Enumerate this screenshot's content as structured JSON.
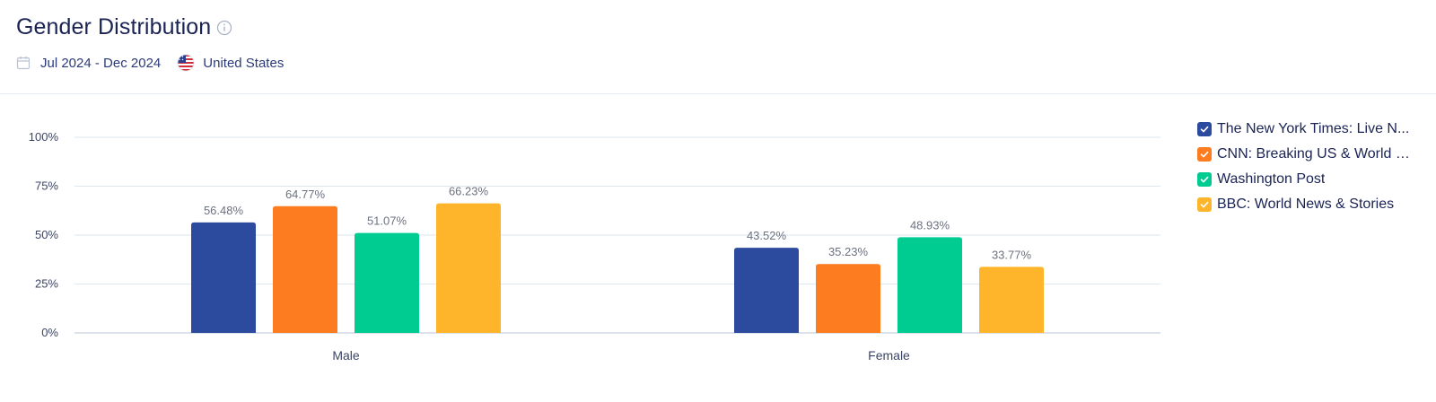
{
  "header": {
    "title": "Gender Distribution",
    "date_range": "Jul 2024 - Dec 2024",
    "country": "United States"
  },
  "colors": {
    "nyt": "#2d4b9e",
    "cnn": "#fd7c1f",
    "wapo": "#00cc92",
    "bbc": "#ffb52b",
    "grid": "#dbe6ef",
    "axis_text": "#3b4566",
    "value_text": "#6b7280"
  },
  "chart_data": {
    "type": "bar",
    "title": "",
    "xlabel": "",
    "ylabel": "",
    "ylim": [
      0,
      100
    ],
    "yticks": [
      "0%",
      "25%",
      "50%",
      "75%",
      "100%"
    ],
    "categories": [
      "Male",
      "Female"
    ],
    "legend_position": "right",
    "grid": true,
    "series": [
      {
        "name": "The New York Times: Live N...",
        "values": [
          56.48,
          43.52
        ],
        "labels": [
          "56.48%",
          "43.52%"
        ],
        "color": "#2d4b9e"
      },
      {
        "name": "CNN: Breaking US & World N...",
        "values": [
          64.77,
          35.23
        ],
        "labels": [
          "64.77%",
          "35.23%"
        ],
        "color": "#fd7c1f"
      },
      {
        "name": "Washington Post",
        "values": [
          51.07,
          48.93
        ],
        "labels": [
          "51.07%",
          "48.93%"
        ],
        "color": "#00cc92"
      },
      {
        "name": "BBC: World News & Stories",
        "values": [
          66.23,
          33.77
        ],
        "labels": [
          "66.23%",
          "33.77%"
        ],
        "color": "#ffb52b"
      }
    ]
  }
}
